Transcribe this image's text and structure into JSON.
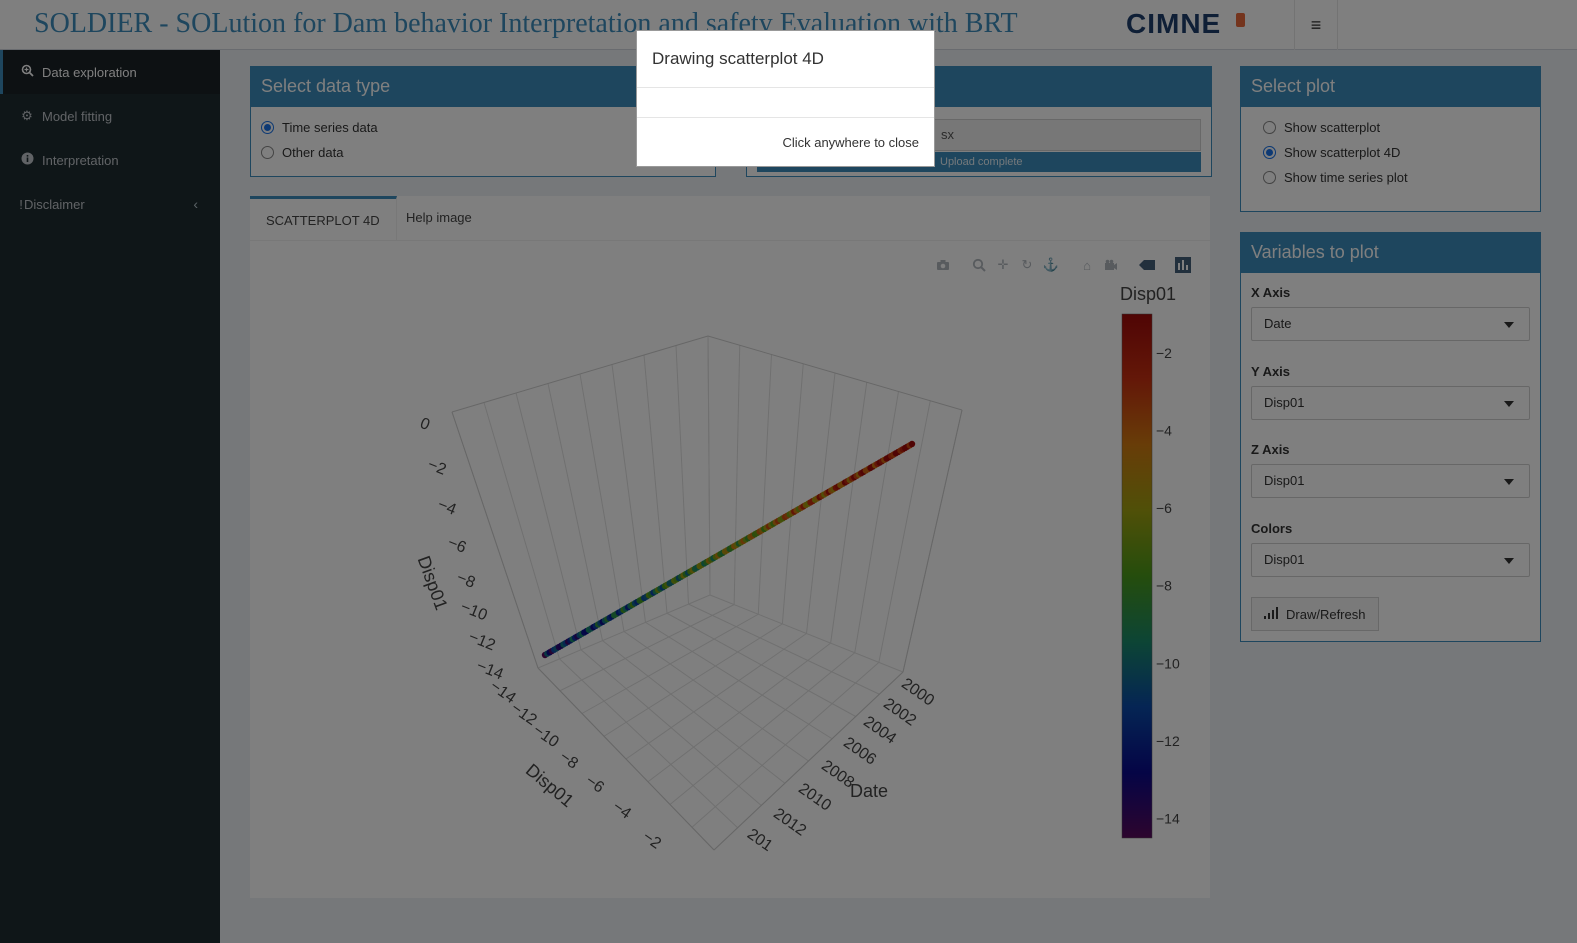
{
  "header": {
    "title": "SOLDIER - SOLution for Dam behavior Interpretation and safety Evaluation with BRT",
    "logo": "CIMNE",
    "menu_icon": "hamburger-icon"
  },
  "sidebar": {
    "items": [
      {
        "label": "Data exploration",
        "icon": "search-plus-icon"
      },
      {
        "label": "Model fitting",
        "icon": "gear-icon"
      },
      {
        "label": "Interpretation",
        "icon": "info-icon"
      },
      {
        "label": "Disclaimer",
        "icon": "exclamation-icon"
      }
    ]
  },
  "data_type": {
    "title": "Select data type",
    "options": [
      "Time series data",
      "Other data"
    ],
    "selected": "Time series data"
  },
  "upload": {
    "file_suffix": "sx",
    "progress_label": "Upload complete",
    "progress": 1.0
  },
  "tabs": [
    {
      "label": "SCATTERPLOT 4D"
    },
    {
      "label": "Help image"
    }
  ],
  "select_plot": {
    "title": "Select plot",
    "options": [
      "Show scatterplot",
      "Show scatterplot 4D",
      "Show time series plot"
    ],
    "selected": "Show scatterplot 4D"
  },
  "variables": {
    "title": "Variables to plot",
    "x_label": "X Axis",
    "x_value": "Date",
    "y_label": "Y Axis",
    "y_value": "Disp01",
    "z_label": "Z Axis",
    "z_value": "Disp01",
    "c_label": "Colors",
    "c_value": "Disp01",
    "button": "Draw/Refresh"
  },
  "modal": {
    "title": "Drawing scatterplot 4D",
    "footer": "Click anywhere to close"
  },
  "chart_data": {
    "type": "scatter",
    "title": "",
    "xlabel": "Date",
    "ylabel": "Disp01",
    "zlabel": "Disp01",
    "colorbar_title": "Disp01",
    "colorbar_ticks": [
      -2,
      -4,
      -6,
      -8,
      -10,
      -12,
      -14
    ],
    "colorscale": [
      "#5a0a5c",
      "#0a0a8c",
      "#0a4aa8",
      "#1a8a6a",
      "#4a9a1a",
      "#a0a010",
      "#d07a10",
      "#c83010",
      "#a00a0a"
    ],
    "x_ticks": [
      "2000",
      "2002",
      "2004",
      "2006",
      "2008",
      "2010",
      "2012",
      "201"
    ],
    "y_ticks": [
      "-14",
      "-12",
      "-10",
      "-8",
      "-6",
      "-4",
      "-2"
    ],
    "z_ticks": [
      "0",
      "-2",
      "-4",
      "-6",
      "-8",
      "-10",
      "-12",
      "-14"
    ],
    "points_value_range": [
      -14.5,
      -1.0
    ]
  }
}
